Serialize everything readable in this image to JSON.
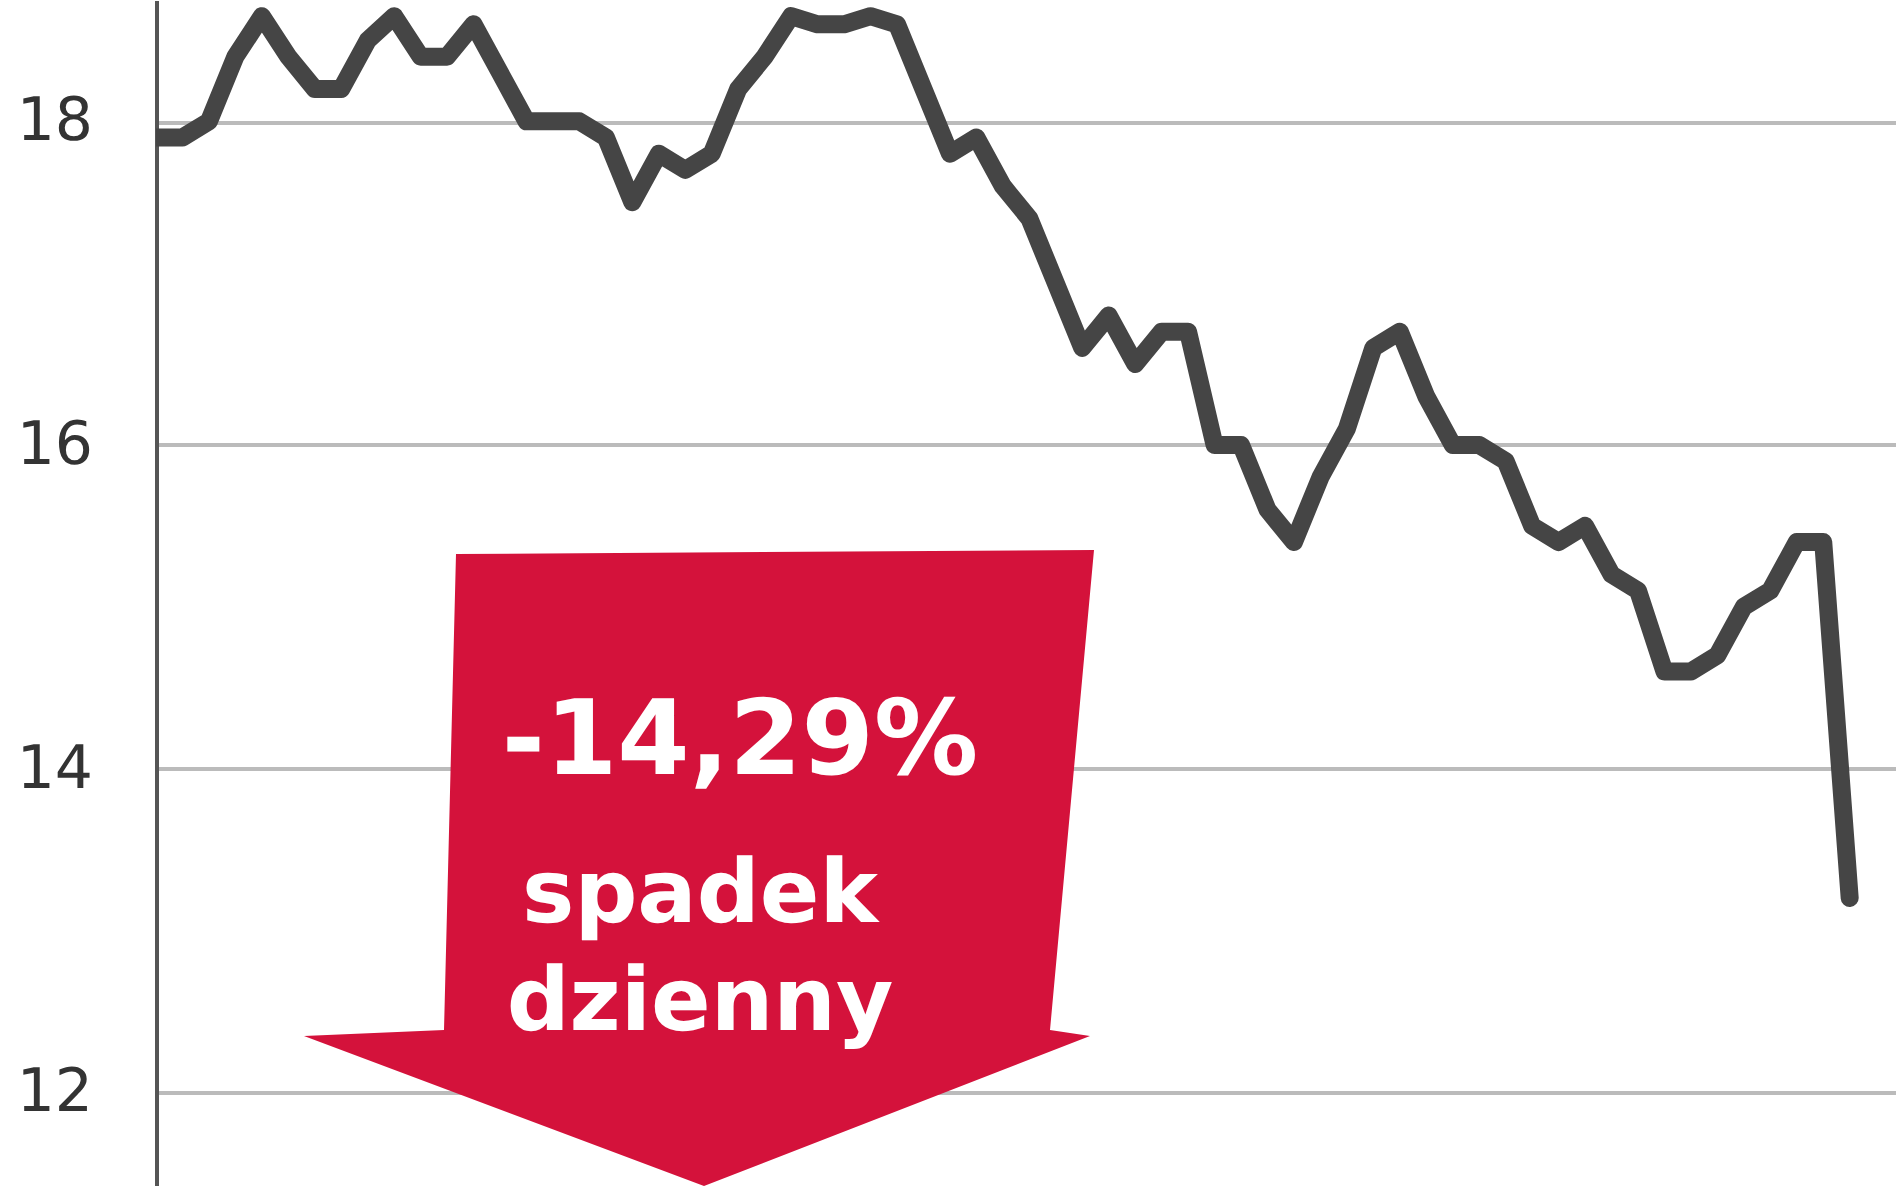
{
  "chart_data": {
    "type": "line",
    "categories": [
      null,
      null,
      null,
      null,
      null,
      null,
      null,
      null,
      null,
      null,
      null,
      null,
      null,
      null,
      null,
      null,
      null,
      null,
      null,
      null,
      null,
      null,
      null,
      null,
      null,
      null,
      null,
      null,
      null,
      null,
      null,
      null,
      null,
      null,
      null,
      null,
      null,
      null,
      null,
      null,
      null,
      null,
      null,
      null,
      null,
      null,
      null,
      null,
      null,
      null,
      null,
      null,
      null,
      null,
      null,
      null,
      null,
      null,
      null,
      null,
      null,
      null,
      null,
      null,
      null
    ],
    "series": [
      {
        "color": "#454545",
        "values": [
          17.9,
          17.9,
          18.0,
          18.4,
          18.65,
          18.4,
          18.2,
          18.2,
          18.5,
          18.65,
          18.4,
          18.4,
          18.6,
          18.3,
          18.0,
          18.0,
          18.0,
          17.9,
          17.5,
          17.8,
          17.7,
          17.8,
          18.2,
          18.4,
          18.65,
          18.6,
          18.6,
          18.65,
          18.6,
          18.2,
          17.8,
          17.9,
          17.6,
          17.4,
          17.0,
          16.6,
          16.8,
          16.5,
          16.7,
          16.7,
          16.0,
          16.0,
          15.6,
          15.4,
          15.8,
          16.1,
          16.6,
          16.7,
          16.3,
          16.0,
          16.0,
          15.9,
          15.5,
          15.4,
          15.5,
          15.2,
          15.1,
          14.6,
          14.6,
          14.7,
          15.0,
          15.1,
          15.4,
          15.4,
          13.2
        ]
      }
    ],
    "ylim": [
      11.42,
      18.75
    ],
    "yticks": [
      12,
      14,
      16,
      18
    ],
    "grid": "y",
    "tick_labels": "y",
    "annotations": [
      "-14,29%",
      "spadek dzienny"
    ]
  }
}
